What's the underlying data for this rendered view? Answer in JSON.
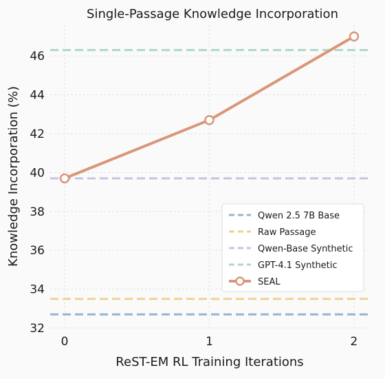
{
  "chart_data": {
    "type": "line",
    "title": "Single-Passage Knowledge Incorporation",
    "xlabel": "ReST-EM RL Training Iterations",
    "ylabel": "Knowledge Incorporation (%)",
    "x": [
      0,
      1,
      2
    ],
    "xticks": [
      "0",
      "1",
      "2"
    ],
    "xlim": [
      -0.1,
      2.1
    ],
    "ylim": [
      32,
      47.6
    ],
    "yticks": [
      32,
      34,
      36,
      38,
      40,
      42,
      44,
      46
    ],
    "grid": true,
    "legend_position": "lower-right",
    "reference_lines": [
      {
        "name": "Qwen 2.5 7B Base",
        "value": 32.7,
        "color": "#98b3cf"
      },
      {
        "name": "Raw Passage",
        "value": 33.5,
        "color": "#eed28f"
      },
      {
        "name": "Qwen-Base Synthetic",
        "value": 39.7,
        "color": "#c9c2e3"
      },
      {
        "name": "GPT-4.1 Synthetic",
        "value": 46.3,
        "color": "#add8c6"
      }
    ],
    "series": [
      {
        "name": "SEAL",
        "values": [
          39.7,
          42.7,
          47.0
        ],
        "color": "#d9967a"
      }
    ]
  }
}
